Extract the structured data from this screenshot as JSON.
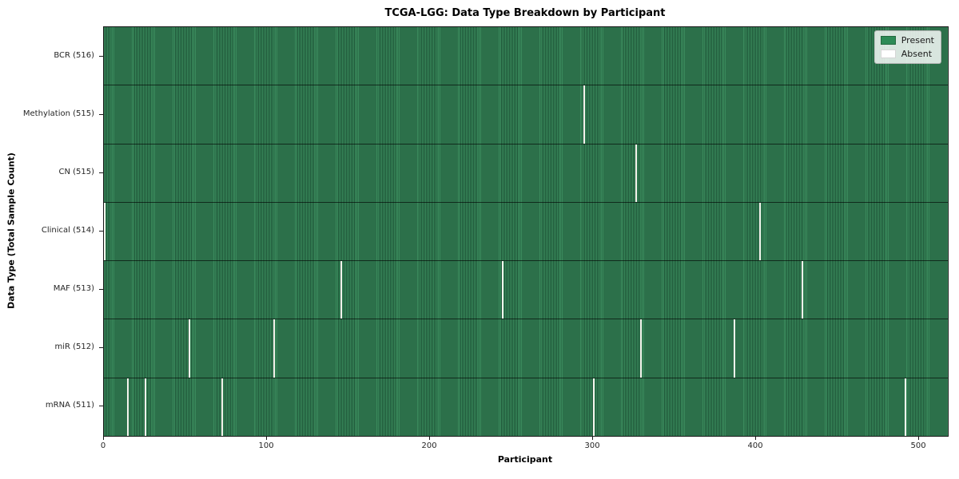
{
  "chart_data": {
    "type": "heatmap",
    "title": "TCGA-LGG: Data Type Breakdown by Participant",
    "xlabel": "Participant",
    "ylabel": "Data Type (Total Sample Count)",
    "x_ticks": [
      0,
      100,
      200,
      300,
      400,
      500
    ],
    "x_max": 517.6,
    "total_participants": 516,
    "grid": false,
    "legend_position": "upper right",
    "legend_entries": [
      {
        "label": "Present",
        "color": "#2e8b57"
      },
      {
        "label": "Absent",
        "color": "#ffffff"
      }
    ],
    "rows": [
      {
        "label": "BCR (516)",
        "data_type": "BCR",
        "sample_count": 516,
        "absent_participants": []
      },
      {
        "label": "Methylation (515)",
        "data_type": "Methylation",
        "sample_count": 515,
        "absent_participants": [
          294
        ]
      },
      {
        "label": "CN (515)",
        "data_type": "CN",
        "sample_count": 515,
        "absent_participants": [
          326
        ]
      },
      {
        "label": "Clinical (514)",
        "data_type": "Clinical",
        "sample_count": 514,
        "absent_participants": [
          0,
          402
        ]
      },
      {
        "label": "MAF (513)",
        "data_type": "MAF",
        "sample_count": 513,
        "absent_participants": [
          145,
          244,
          428
        ]
      },
      {
        "label": "miR (512)",
        "data_type": "miR",
        "sample_count": 512,
        "absent_participants": [
          52,
          104,
          329,
          386
        ]
      },
      {
        "label": "mRNA (511)",
        "data_type": "mRNA",
        "sample_count": 511,
        "absent_participants": [
          14,
          25,
          72,
          300,
          491
        ]
      }
    ],
    "colors": {
      "present_stripe_light": "#3a8a5c",
      "present_stripe_dark": "#1e5638",
      "absent": "#f3f3ec",
      "plot_border": "#1a1a1a",
      "legend_present": "#2e8b57"
    }
  }
}
